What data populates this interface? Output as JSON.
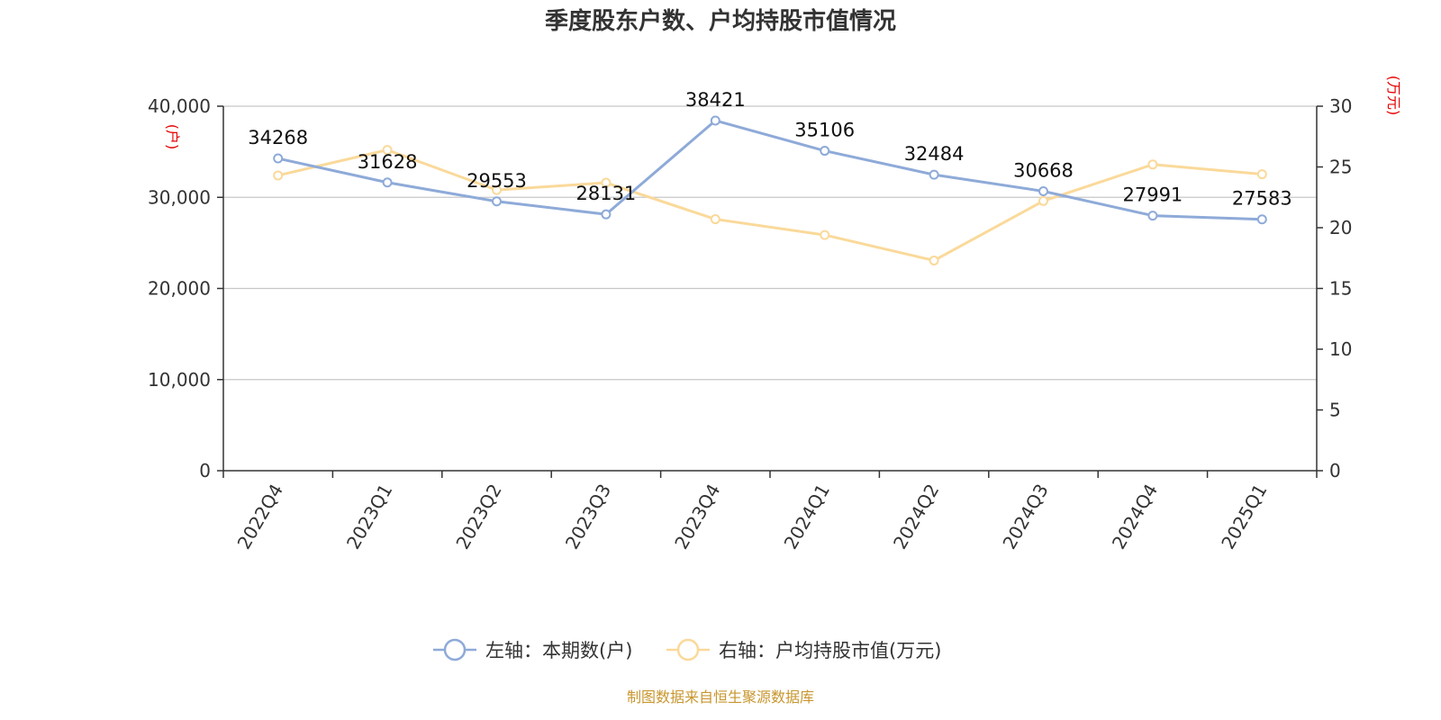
{
  "chart_data": {
    "type": "line",
    "title": "季度股东户数、户均持股市值情况",
    "categories": [
      "2022Q4",
      "2023Q1",
      "2023Q2",
      "2023Q3",
      "2023Q4",
      "2024Q1",
      "2024Q2",
      "2024Q3",
      "2024Q4",
      "2025Q1"
    ],
    "left_axis": {
      "unit": "(户)",
      "range": [
        0,
        40000
      ],
      "ticks": [
        "0",
        "10,000",
        "20,000",
        "30,000",
        "40,000"
      ],
      "tick_values": [
        0,
        10000,
        20000,
        30000,
        40000
      ]
    },
    "right_axis": {
      "unit": "(万元)",
      "range": [
        0,
        30
      ],
      "ticks": [
        "0",
        "5",
        "10",
        "15",
        "20",
        "25",
        "30"
      ],
      "tick_values": [
        0,
        5,
        10,
        15,
        20,
        25,
        30
      ]
    },
    "series": [
      {
        "name": "左轴：本期数(户)",
        "axis": "left",
        "color": "#8eaad8",
        "values": [
          34268,
          31628,
          29553,
          28131,
          38421,
          35106,
          32484,
          30668,
          27991,
          27583
        ],
        "labels": [
          "34268",
          "31628",
          "29553",
          "28131",
          "38421",
          "35106",
          "32484",
          "30668",
          "27991",
          "27583"
        ]
      },
      {
        "name": "右轴：户均持股市值(万元)",
        "axis": "right",
        "color": "#fad99a",
        "values": [
          24.3,
          26.4,
          23.1,
          23.7,
          20.7,
          19.4,
          17.3,
          22.2,
          25.2,
          24.4
        ]
      }
    ],
    "grid": true,
    "legend_position": "bottom"
  },
  "source_text": "制图数据来自恒生聚源数据库"
}
